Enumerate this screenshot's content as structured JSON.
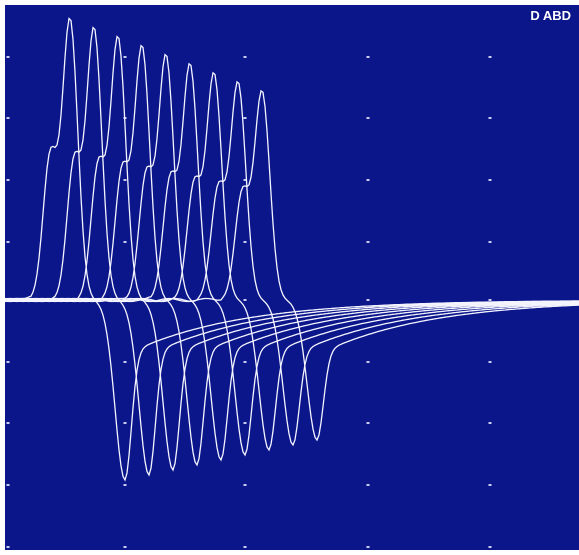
{
  "screen": {
    "label": "D ABD"
  }
}
